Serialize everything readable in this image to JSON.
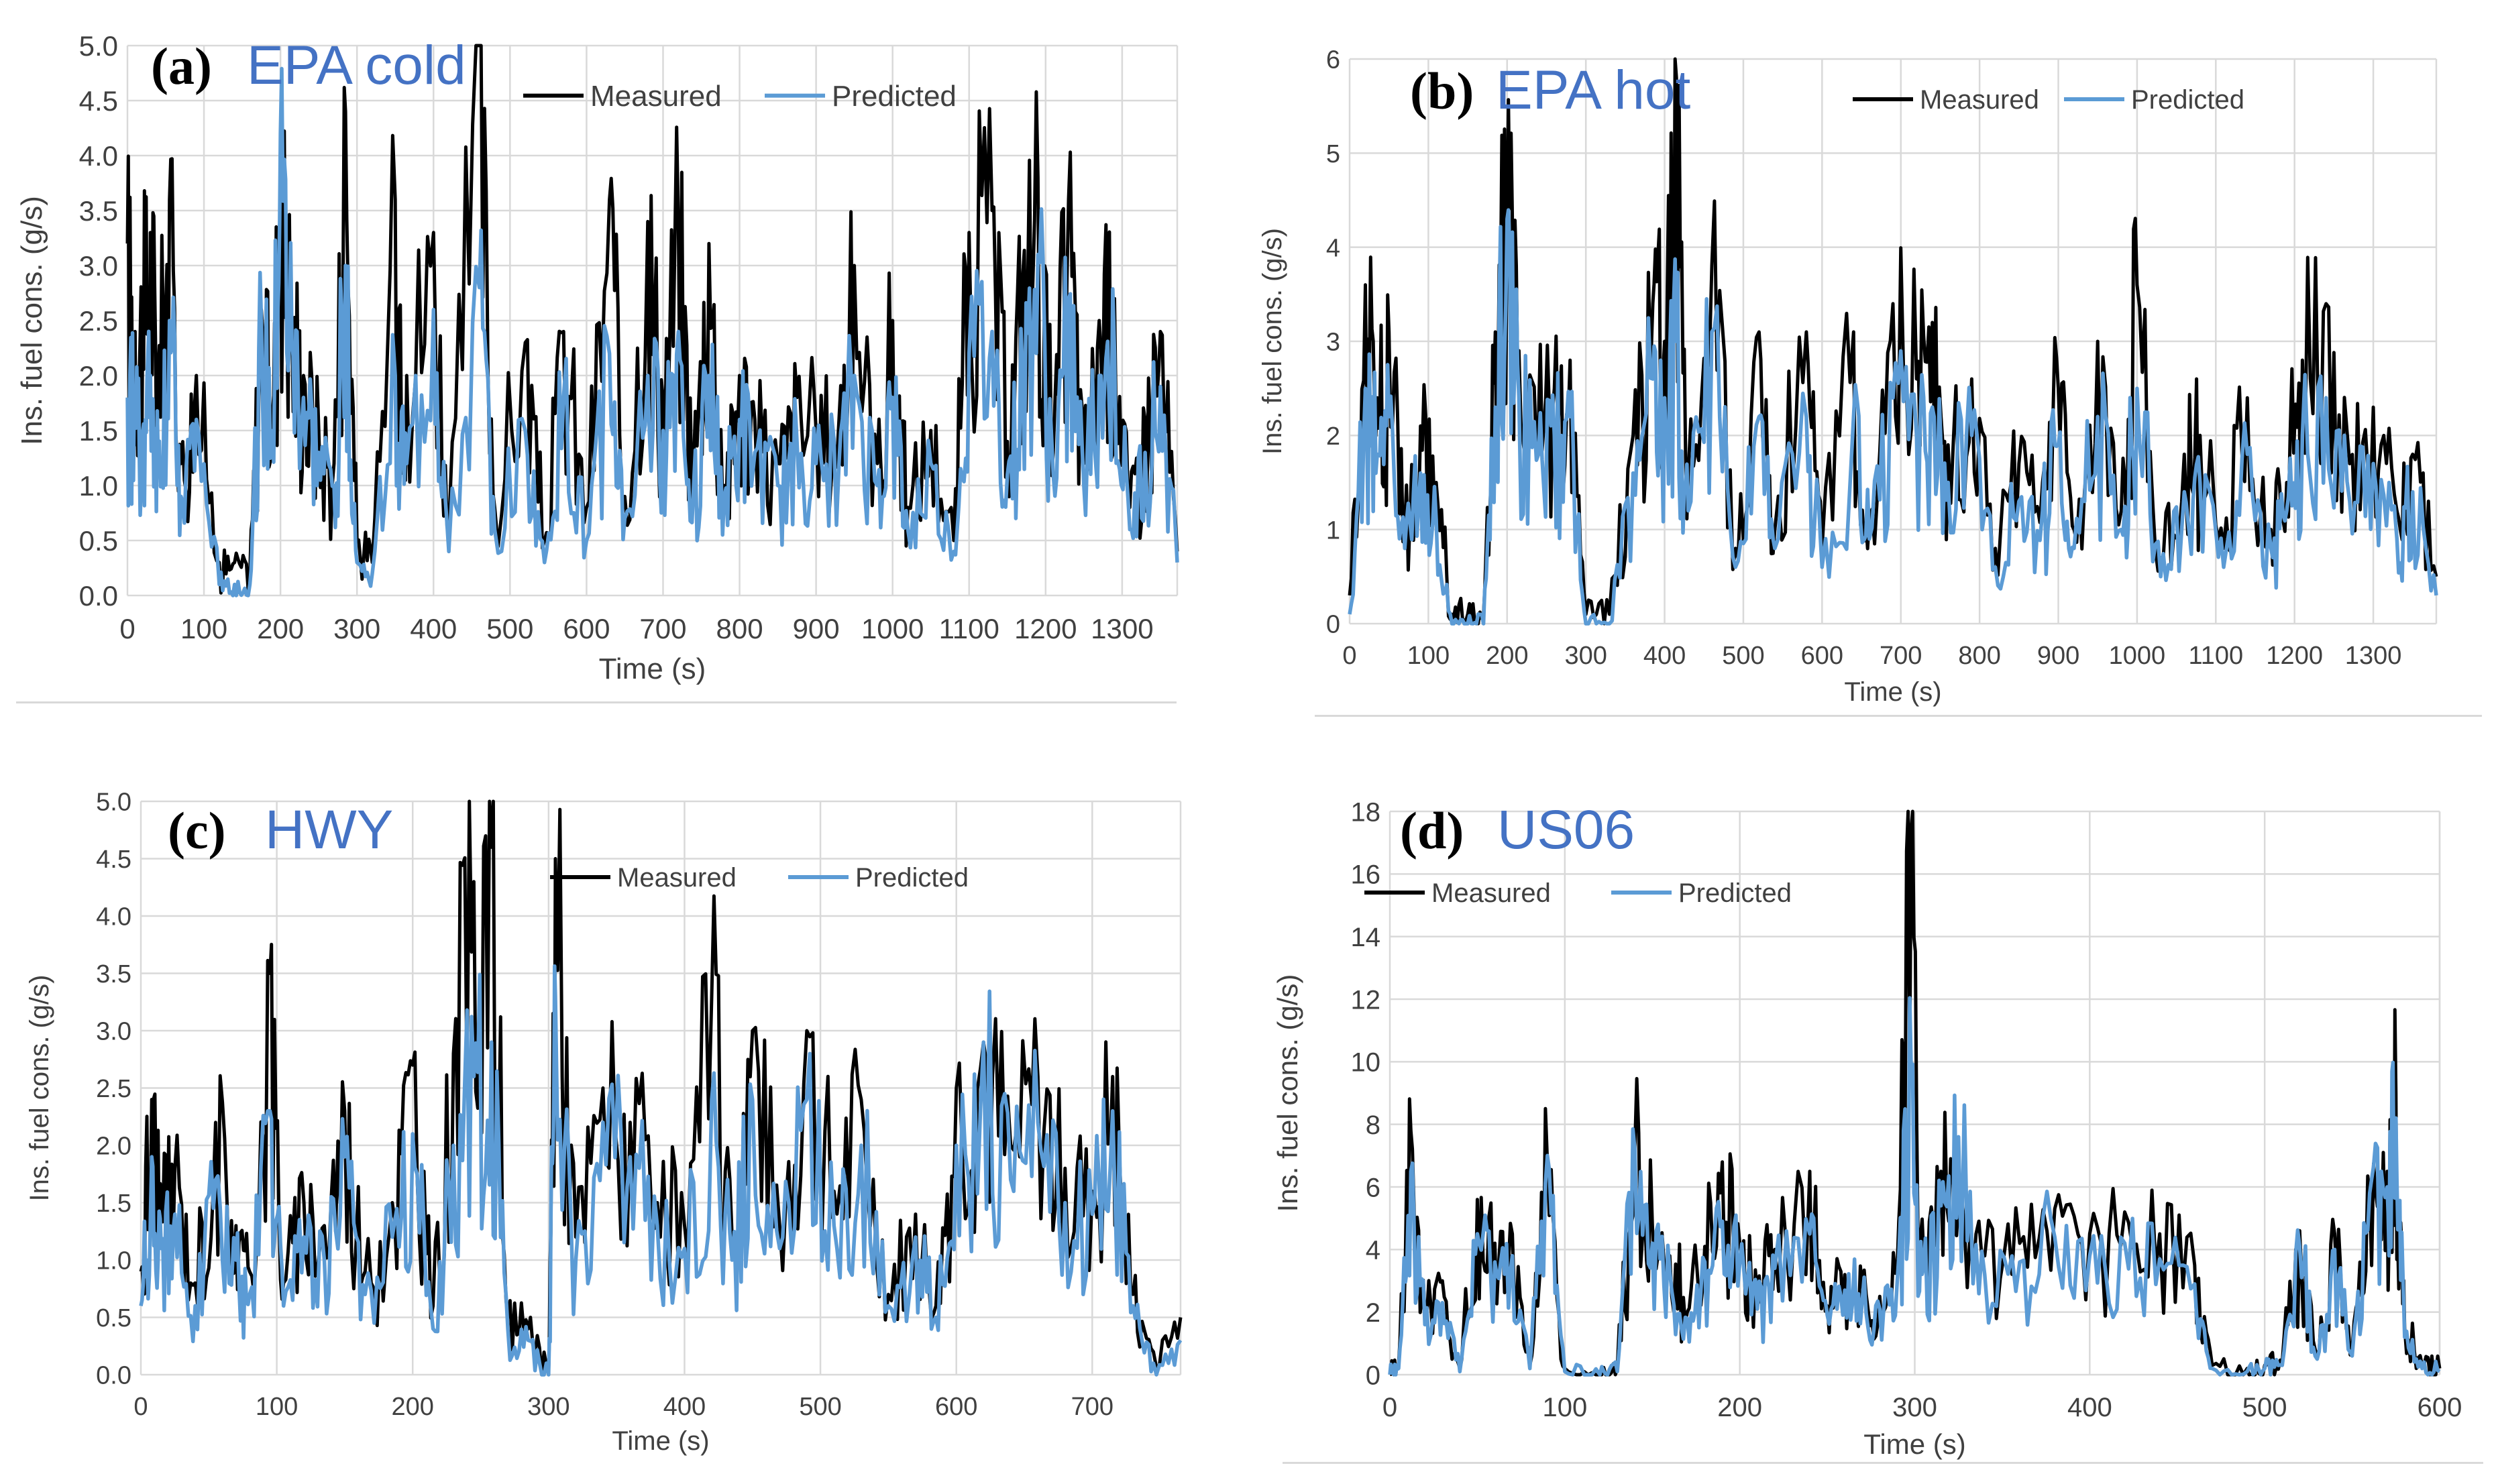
{
  "colors": {
    "measured": "#000000",
    "predicted": "#5b9bd5",
    "grid": "#d9d9d9",
    "panel_title": "#4472c4",
    "axis_text": "#404040"
  },
  "legend": {
    "measured": "Measured",
    "predicted": "Predicted"
  },
  "chart_data": [
    {
      "type": "line",
      "panel_label": "(a)",
      "title": "EPA cold",
      "xlabel": "Time (s)",
      "ylabel": "Ins. fuel cons. (g/s)",
      "xlim": [
        0,
        1372
      ],
      "ylim": [
        0,
        5
      ],
      "xticks": [
        0,
        100,
        200,
        300,
        400,
        500,
        600,
        700,
        800,
        900,
        1000,
        1100,
        1200,
        1300
      ],
      "yticks": [
        "0.0",
        "0.5",
        "1.0",
        "1.5",
        "2.0",
        "2.5",
        "3.0",
        "3.5",
        "4.0",
        "4.5",
        "5.0"
      ],
      "legend_position": "top-right",
      "series": [
        {
          "name": "Measured",
          "x": [
            0,
            10,
            20,
            30,
            40,
            55,
            70,
            90,
            120,
            140,
            160,
            175,
            190,
            200,
            215,
            230,
            250,
            270,
            285,
            300,
            320,
            350,
            365,
            400,
            420,
            460,
            480,
            520,
            545,
            570,
            600,
            630,
            650,
            680,
            700,
            720,
            740,
            760,
            780,
            800,
            820,
            850,
            875,
            900,
            930,
            950,
            980,
            1000,
            1020,
            1050,
            1080,
            1100,
            1130,
            1150,
            1170,
            1190,
            1210,
            1230,
            1250,
            1270,
            1290,
            1310,
            1330,
            1350,
            1372
          ],
          "values": [
            3.2,
            2.4,
            2.6,
            3.3,
            2.0,
            3.6,
            1.2,
            2.0,
            0.3,
            0.3,
            0.2,
            2.6,
            1.7,
            4.1,
            2.5,
            2.0,
            1.5,
            1.2,
            4.4,
            0.5,
            0.3,
            3.6,
            2.0,
            3.3,
            0.6,
            5.0,
            0.8,
            2.3,
            0.5,
            2.4,
            0.8,
            3.6,
            0.9,
            3.4,
            1.8,
            3.4,
            1.2,
            3.2,
            1.0,
            2.0,
            1.6,
            1.2,
            1.8,
            1.5,
            1.6,
            3.0,
            1.2,
            2.5,
            0.8,
            1.5,
            0.5,
            3.3,
            3.5,
            1.4,
            2.9,
            3.8,
            1.3,
            3.6,
            1.2,
            2.5,
            2.7,
            0.8,
            1.6,
            2.4,
            0.4
          ]
        },
        {
          "name": "Predicted",
          "x": [
            0,
            10,
            20,
            30,
            40,
            55,
            70,
            90,
            120,
            140,
            160,
            175,
            190,
            200,
            215,
            230,
            250,
            270,
            285,
            300,
            320,
            350,
            365,
            400,
            420,
            460,
            480,
            520,
            545,
            570,
            600,
            630,
            650,
            680,
            700,
            720,
            740,
            760,
            780,
            800,
            820,
            850,
            875,
            900,
            930,
            950,
            980,
            1000,
            1020,
            1050,
            1080,
            1100,
            1130,
            1150,
            1170,
            1190,
            1210,
            1230,
            1250,
            1270,
            1290,
            1310,
            1330,
            1350,
            1372
          ],
          "values": [
            1.8,
            1.9,
            1.5,
            2.0,
            1.3,
            2.5,
            0.9,
            1.6,
            0.1,
            0.1,
            0.1,
            2.5,
            1.5,
            4.2,
            2.3,
            1.8,
            1.3,
            1.0,
            3.0,
            0.3,
            0.2,
            2.0,
            1.2,
            2.6,
            0.4,
            2.8,
            0.6,
            1.5,
            0.3,
            1.8,
            0.5,
            2.2,
            0.7,
            2.0,
            1.5,
            2.4,
            1.0,
            2.0,
            0.9,
            1.6,
            1.3,
            1.0,
            1.4,
            1.2,
            1.2,
            2.0,
            1.0,
            1.8,
            0.6,
            1.2,
            0.4,
            2.2,
            2.4,
            1.1,
            2.0,
            3.1,
            1.1,
            2.7,
            1.0,
            2.0,
            2.2,
            0.6,
            1.3,
            1.9,
            0.3
          ]
        }
      ]
    },
    {
      "type": "line",
      "panel_label": "(b)",
      "title": "EPA hot",
      "xlabel": "Time (s)",
      "ylabel": "Ins. fuel cons. (g/s)",
      "xlim": [
        0,
        1380
      ],
      "ylim": [
        0,
        6
      ],
      "xticks": [
        0,
        100,
        200,
        300,
        400,
        500,
        600,
        700,
        800,
        900,
        1000,
        1100,
        1200,
        1300
      ],
      "yticks": [
        "0",
        "1",
        "2",
        "3",
        "4",
        "5",
        "6"
      ],
      "legend_position": "top-right",
      "series": [
        {
          "name": "Measured",
          "x": [
            0,
            20,
            35,
            50,
            70,
            90,
            110,
            130,
            150,
            170,
            185,
            200,
            215,
            240,
            260,
            280,
            300,
            330,
            360,
            385,
            400,
            415,
            430,
            460,
            490,
            520,
            540,
            580,
            600,
            640,
            660,
            690,
            720,
            740,
            760,
            790,
            820,
            850,
            880,
            900,
            920,
            950,
            980,
            1000,
            1030,
            1060,
            1080,
            1110,
            1140,
            1170,
            1190,
            1210,
            1240,
            1270,
            1300,
            1330,
            1350,
            1380
          ],
          "values": [
            0.3,
            3.6,
            2.4,
            3.1,
            1.0,
            2.1,
            1.5,
            0.1,
            0.1,
            0.1,
            3.1,
            4.4,
            2.9,
            2.2,
            2.5,
            2.8,
            0.1,
            0.1,
            2.0,
            3.4,
            3.0,
            5.8,
            1.6,
            3.8,
            0.8,
            3.1,
            1.0,
            3.1,
            0.8,
            3.1,
            1.1,
            3.4,
            2.6,
            3.2,
            1.9,
            2.6,
            0.8,
            1.7,
            1.5,
            2.5,
            1.0,
            3.0,
            1.2,
            3.6,
            0.7,
            1.8,
            2.0,
            0.8,
            2.4,
            1.0,
            1.5,
            2.8,
            3.4,
            1.7,
            2.3,
            1.2,
            1.8,
            0.5
          ]
        },
        {
          "name": "Predicted",
          "x": [
            0,
            20,
            35,
            50,
            70,
            90,
            110,
            130,
            150,
            170,
            185,
            200,
            215,
            240,
            260,
            280,
            300,
            330,
            360,
            385,
            400,
            415,
            430,
            460,
            490,
            520,
            540,
            580,
            600,
            640,
            660,
            690,
            720,
            740,
            760,
            790,
            820,
            850,
            880,
            900,
            920,
            950,
            980,
            1000,
            1030,
            1060,
            1080,
            1110,
            1140,
            1170,
            1190,
            1210,
            1240,
            1270,
            1300,
            1330,
            1350,
            1380
          ],
          "values": [
            0.1,
            2.5,
            1.8,
            2.2,
            0.8,
            1.6,
            1.1,
            0.0,
            0.0,
            0.0,
            2.3,
            4.3,
            2.4,
            1.8,
            2.0,
            2.2,
            0.0,
            0.0,
            1.6,
            2.6,
            2.4,
            3.0,
            1.2,
            3.1,
            0.6,
            2.2,
            0.8,
            2.2,
            0.6,
            2.2,
            0.9,
            2.4,
            2.0,
            2.3,
            1.5,
            2.0,
            0.6,
            1.3,
            1.2,
            1.9,
            0.8,
            2.2,
            1.0,
            2.5,
            0.5,
            1.4,
            1.5,
            0.6,
            1.8,
            0.8,
            1.2,
            2.0,
            2.4,
            1.3,
            1.7,
            0.9,
            1.4,
            0.3
          ]
        }
      ]
    },
    {
      "type": "line",
      "panel_label": "(c)",
      "title": "HWY",
      "xlabel": "Time (s)",
      "ylabel": "Ins. fuel cons. (g/s)",
      "xlim": [
        0,
        765
      ],
      "ylim": [
        0,
        5
      ],
      "xticks": [
        0,
        100,
        200,
        300,
        400,
        500,
        600,
        700
      ],
      "yticks": [
        "0.0",
        "0.5",
        "1.0",
        "1.5",
        "2.0",
        "2.5",
        "3.0",
        "3.5",
        "4.0",
        "4.5",
        "5.0"
      ],
      "legend_position": "top-right",
      "series": [
        {
          "name": "Measured",
          "x": [
            0,
            8,
            15,
            25,
            40,
            55,
            70,
            80,
            95,
            105,
            120,
            135,
            150,
            165,
            185,
            200,
            215,
            230,
            245,
            258,
            270,
            285,
            300,
            305,
            320,
            340,
            360,
            380,
            400,
            420,
            435,
            450,
            470,
            490,
            510,
            530,
            550,
            570,
            585,
            600,
            620,
            640,
            660,
            680,
            700,
            715,
            730,
            745,
            765
          ],
          "values": [
            0.9,
            2.4,
            1.4,
            1.8,
            0.8,
            2.2,
            1.3,
            0.9,
            3.5,
            0.8,
            1.5,
            1.3,
            2.3,
            0.9,
            1.5,
            2.7,
            0.6,
            2.8,
            4.3,
            4.6,
            0.5,
            0.4,
            0.0,
            4.5,
            1.2,
            2.5,
            2.2,
            1.5,
            1.3,
            3.3,
            1.2,
            3.0,
            1.3,
            3.0,
            1.6,
            2.4,
            0.7,
            1.4,
            0.6,
            2.5,
            2.9,
            2.0,
            2.6,
            1.8,
            1.6,
            2.6,
            0.7,
            0.2,
            0.5
          ]
        },
        {
          "name": "Predicted",
          "x": [
            0,
            8,
            15,
            25,
            40,
            55,
            70,
            80,
            95,
            105,
            120,
            135,
            150,
            165,
            185,
            200,
            215,
            230,
            245,
            258,
            270,
            285,
            300,
            305,
            320,
            340,
            360,
            380,
            400,
            420,
            435,
            450,
            470,
            490,
            510,
            530,
            550,
            570,
            585,
            600,
            620,
            640,
            660,
            680,
            700,
            715,
            730,
            745,
            765
          ],
          "values": [
            0.6,
            1.9,
            1.1,
            1.4,
            0.6,
            1.7,
            1.0,
            0.7,
            2.3,
            0.6,
            1.2,
            1.0,
            1.9,
            0.7,
            1.2,
            2.1,
            0.4,
            2.0,
            2.6,
            2.9,
            0.4,
            0.3,
            0.0,
            3.3,
            1.0,
            2.2,
            1.9,
            1.3,
            1.1,
            2.4,
            1.0,
            2.4,
            1.1,
            2.4,
            1.3,
            2.0,
            0.6,
            1.2,
            0.5,
            2.0,
            2.9,
            1.7,
            2.2,
            1.5,
            1.4,
            2.3,
            0.6,
            0.1,
            0.3
          ]
        }
      ]
    },
    {
      "type": "line",
      "panel_label": "(d)",
      "title": "US06",
      "xlabel": "Time (s)",
      "ylabel": "Ins. fuel cons. (g/s)",
      "xlim": [
        0,
        600
      ],
      "ylim": [
        0,
        18
      ],
      "xticks": [
        0,
        100,
        200,
        300,
        400,
        500,
        600
      ],
      "yticks": [
        "0",
        "2",
        "4",
        "6",
        "8",
        "10",
        "12",
        "14",
        "16",
        "18"
      ],
      "legend_position": "top-left",
      "series": [
        {
          "name": "Measured",
          "x": [
            0,
            5,
            12,
            20,
            30,
            40,
            50,
            60,
            70,
            80,
            90,
            100,
            120,
            130,
            140,
            150,
            160,
            170,
            180,
            190,
            200,
            210,
            220,
            240,
            250,
            260,
            270,
            280,
            290,
            298,
            305,
            315,
            325,
            340,
            360,
            380,
            400,
            420,
            440,
            460,
            470,
            490,
            500,
            510,
            520,
            530,
            540,
            550,
            560,
            570,
            575,
            580,
            590,
            600
          ],
          "values": [
            0.0,
            0.3,
            7.8,
            2.0,
            3.0,
            0.2,
            5.6,
            4.2,
            4.5,
            0.3,
            6.8,
            0.2,
            0.0,
            0.2,
            7.2,
            4.8,
            3.8,
            2.0,
            4.1,
            6.8,
            4.2,
            2.5,
            4.0,
            6.5,
            2.2,
            3.2,
            2.8,
            2.5,
            3.5,
            17.5,
            4.0,
            6.5,
            5.5,
            3.8,
            4.2,
            5.3,
            4.5,
            5.2,
            4.5,
            3.5,
            0.3,
            0.2,
            0.3,
            0.4,
            4.6,
            0.6,
            4.5,
            0.8,
            5.8,
            6.5,
            9.0,
            1.5,
            0.3,
            0.2
          ]
        },
        {
          "name": "Predicted",
          "x": [
            0,
            5,
            12,
            20,
            30,
            40,
            50,
            60,
            70,
            80,
            90,
            100,
            120,
            130,
            140,
            150,
            160,
            170,
            180,
            190,
            200,
            210,
            220,
            240,
            250,
            260,
            270,
            280,
            290,
            298,
            305,
            315,
            325,
            340,
            360,
            380,
            400,
            420,
            440,
            460,
            470,
            490,
            500,
            510,
            520,
            530,
            540,
            550,
            560,
            570,
            575,
            580,
            590,
            600
          ],
          "values": [
            0.0,
            0.2,
            6.5,
            1.6,
            2.3,
            0.1,
            4.5,
            3.6,
            3.8,
            0.2,
            7.0,
            0.1,
            0.0,
            0.1,
            7.2,
            4.2,
            3.3,
            1.8,
            3.6,
            4.9,
            3.6,
            2.1,
            3.4,
            4.5,
            1.9,
            2.7,
            2.4,
            2.1,
            3.0,
            9.6,
            3.4,
            5.4,
            7.6,
            3.2,
            3.6,
            4.4,
            3.8,
            4.2,
            3.7,
            2.9,
            0.2,
            0.1,
            0.2,
            0.3,
            4.1,
            0.5,
            4.0,
            0.6,
            5.8,
            6.0,
            8.2,
            1.2,
            0.2,
            0.1
          ]
        }
      ]
    }
  ]
}
